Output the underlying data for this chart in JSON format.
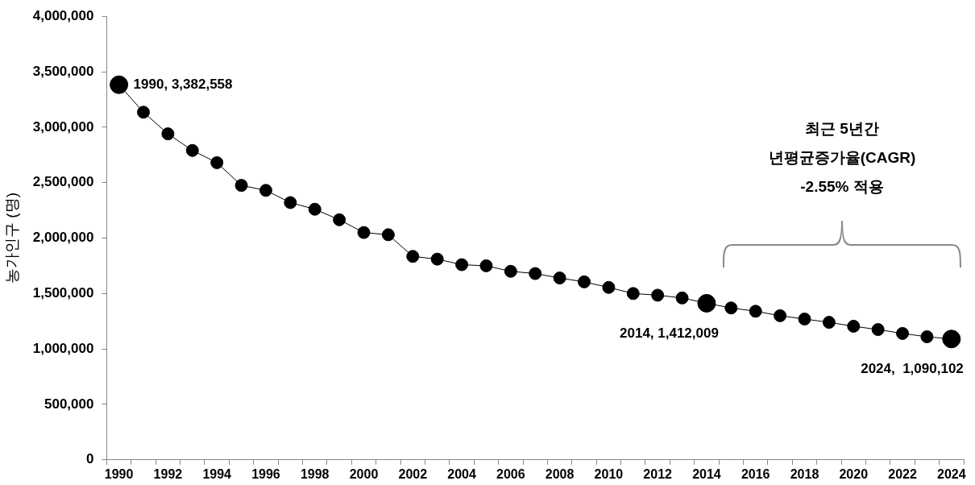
{
  "chart_data": {
    "type": "line",
    "ylabel": "농가인구 (명)",
    "categories": [
      "1990",
      null,
      "1992",
      null,
      "1994",
      null,
      "1996",
      null,
      "1998",
      null,
      "2000",
      null,
      "2002",
      null,
      "2004",
      null,
      "2006",
      null,
      "2008",
      null,
      "2010",
      null,
      "2012",
      null,
      "2014",
      null,
      "2016",
      null,
      "2018",
      null,
      "2020",
      null,
      "2022",
      null,
      "2024"
    ],
    "values": [
      3382558,
      3135000,
      2940000,
      2790000,
      2680000,
      2475000,
      2430000,
      2320000,
      2260000,
      2165000,
      2050000,
      2030000,
      1835000,
      1810000,
      1760000,
      1750000,
      1700000,
      1680000,
      1640000,
      1605000,
      1555000,
      1500000,
      1485000,
      1460000,
      1412009,
      1370000,
      1340000,
      1300000,
      1270000,
      1240000,
      1205000,
      1175000,
      1140000,
      1110000,
      1090102
    ],
    "value_labels": [
      "1990, 3,382,558",
      null,
      null,
      null,
      null,
      null,
      null,
      null,
      null,
      null,
      null,
      null,
      null,
      null,
      null,
      null,
      null,
      null,
      null,
      null,
      null,
      null,
      null,
      null,
      "2014, 1,412,009",
      null,
      null,
      null,
      null,
      null,
      null,
      null,
      null,
      null,
      "2024,  1,090,102"
    ],
    "color": "#000000",
    "marker": "circle",
    "ylim": [
      0,
      4000000
    ],
    "yticks": [
      0,
      {
        "value": 500000,
        "label": "500,000"
      },
      {
        "value": 1000000,
        "label": "1,000,000"
      },
      {
        "value": 1500000,
        "label": "1,500,000"
      },
      {
        "value": 2000000,
        "label": "2,000,000"
      },
      {
        "value": 2500000,
        "label": "2,500,000"
      },
      {
        "value": 3000000,
        "label": "3,000,000"
      },
      {
        "value": 3500000,
        "label": "3,500,000"
      },
      {
        "value": 4000000,
        "label": "4,000,000"
      }
    ],
    "annotations": [
      "최근 5년간\n년평균증가율(CAGR)\n-2.55% 적용"
    ]
  }
}
